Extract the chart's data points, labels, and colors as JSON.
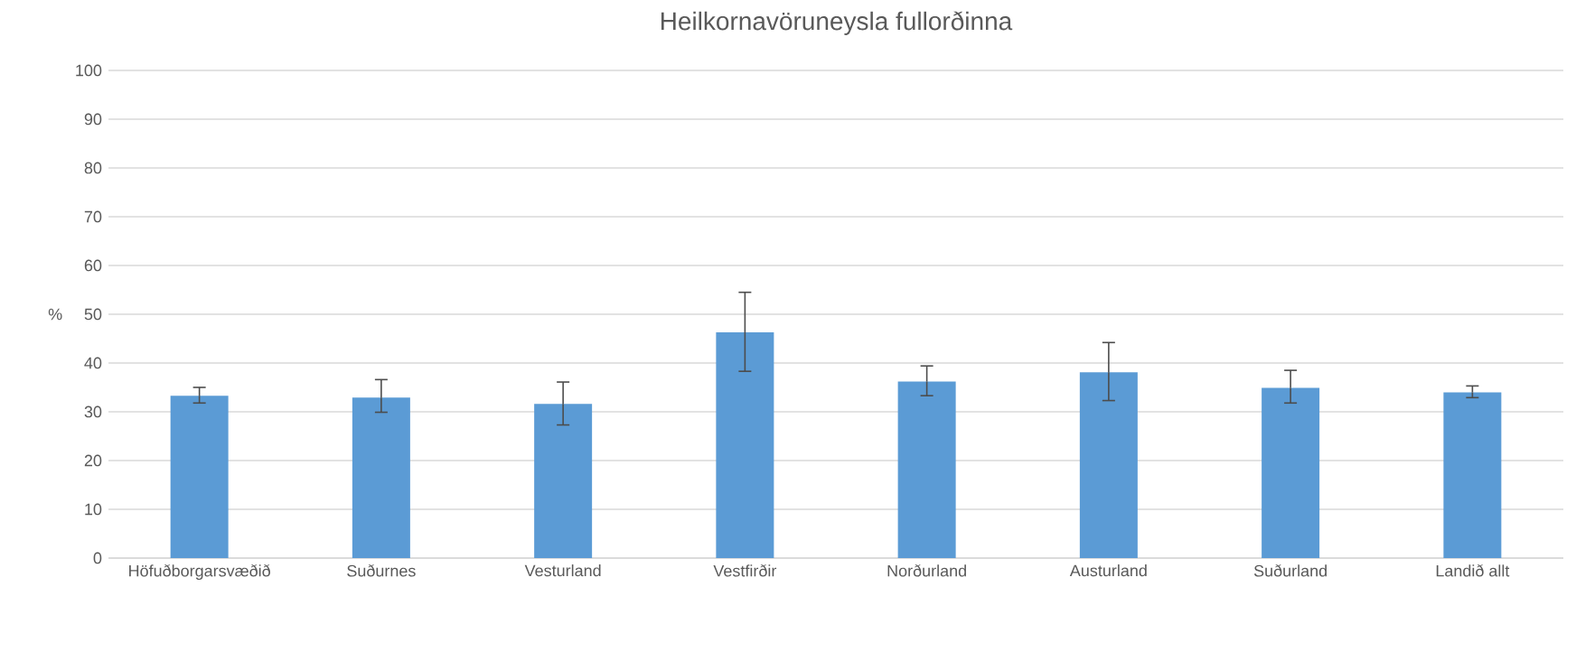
{
  "chart_data": {
    "type": "bar",
    "title": "Heilkornavöruneysla fullorðinna",
    "ylabel": "%",
    "categories": [
      "Höfuðborgarsvæðið",
      "Suðurnes",
      "Vesturland",
      "Vestfirðir",
      "Norðurland",
      "Austurland",
      "Suðurland",
      "Landið allt"
    ],
    "values": [
      33.3,
      32.9,
      31.6,
      46.3,
      36.2,
      38.1,
      34.9,
      34.0
    ],
    "errors": [
      [
        31.8,
        35.0
      ],
      [
        29.9,
        36.6
      ],
      [
        27.3,
        36.1
      ],
      [
        38.3,
        54.5
      ],
      [
        33.3,
        39.4
      ],
      [
        32.3,
        44.2
      ],
      [
        31.8,
        38.5
      ],
      [
        32.9,
        35.3
      ]
    ],
    "colors": [
      "#5b9bd5",
      "#5b9bd5",
      "#5b9bd5",
      "#5b9bd5",
      "#5b9bd5",
      "#5b9bd5",
      "#5b9bd5",
      "#5b9bd5"
    ],
    "ylim": [
      0,
      100
    ],
    "yticks": [
      0,
      10,
      20,
      30,
      40,
      50,
      60,
      70,
      80,
      90,
      100
    ],
    "grid": "y"
  }
}
